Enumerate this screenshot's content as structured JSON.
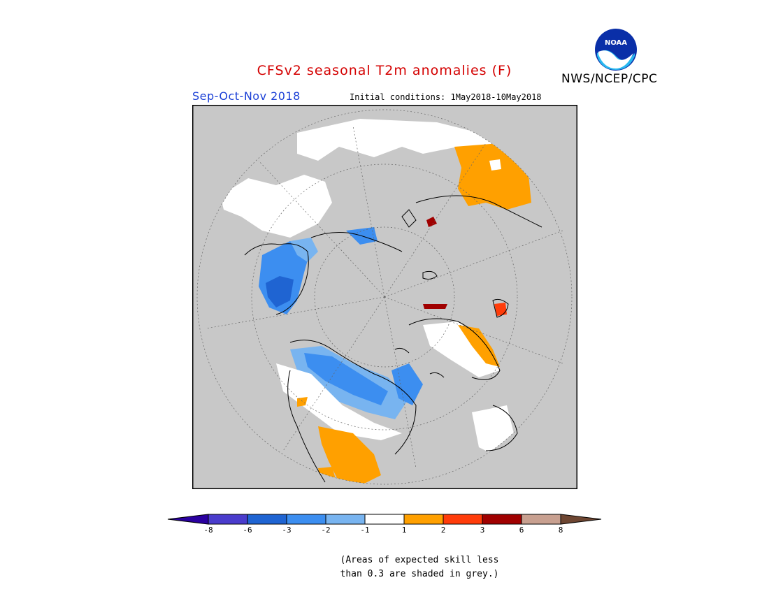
{
  "header": {
    "title": "CFSv2 seasonal T2m anomalies (F)",
    "title_color": "#d40000",
    "org": "NWS/NCEP/CPC",
    "logo_text": "NOAA",
    "season": "Sep-Oct-Nov 2018",
    "season_color": "#1a3fd6",
    "initial_conditions": "Initial conditions: 1May2018-10May2018"
  },
  "legend": {
    "ticks": [
      "-8",
      "-6",
      "-3",
      "-2",
      "-1",
      "1",
      "2",
      "3",
      "6",
      "8"
    ],
    "colors": [
      "#2a00a0",
      "#4a3ccc",
      "#1f64d2",
      "#3c8ef0",
      "#78b4f0",
      "#ffffff",
      "#ffa000",
      "#ff3c0a",
      "#a00000",
      "#c8a090",
      "#6e4632"
    ],
    "note_line1": "(Areas of expected skill less",
    "note_line2": "than 0.3 are shaded in grey.)"
  },
  "map": {
    "background": "#c8c8c8",
    "projection": "north-polar-stereographic"
  }
}
